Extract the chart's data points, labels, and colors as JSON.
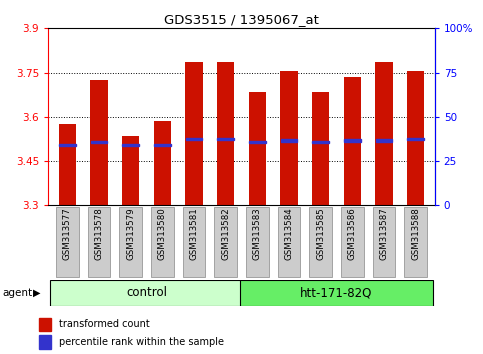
{
  "title": "GDS3515 / 1395067_at",
  "samples": [
    "GSM313577",
    "GSM313578",
    "GSM313579",
    "GSM313580",
    "GSM313581",
    "GSM313582",
    "GSM313583",
    "GSM313584",
    "GSM313585",
    "GSM313586",
    "GSM313587",
    "GSM313588"
  ],
  "transformed_counts": [
    3.575,
    3.725,
    3.535,
    3.585,
    3.785,
    3.785,
    3.685,
    3.755,
    3.685,
    3.735,
    3.785,
    3.755
  ],
  "percentile_values": [
    3.505,
    3.515,
    3.505,
    3.505,
    3.525,
    3.525,
    3.515,
    3.52,
    3.515,
    3.52,
    3.52,
    3.525
  ],
  "ylim_left": [
    3.3,
    3.9
  ],
  "ylim_right": [
    0,
    100
  ],
  "yticks_left": [
    3.3,
    3.45,
    3.6,
    3.75,
    3.9
  ],
  "yticks_right": [
    0,
    25,
    50,
    75,
    100
  ],
  "ytick_labels_right": [
    "0",
    "25",
    "50",
    "75",
    "100%"
  ],
  "bar_color": "#cc1100",
  "percentile_color": "#3333cc",
  "ctrl_n": 6,
  "treat_n": 6,
  "control_label": "control",
  "treatment_label": "htt-171-82Q",
  "agent_label": "agent",
  "control_bg": "#ccffcc",
  "treatment_bg": "#66ee66",
  "xlabel_bg": "#cccccc",
  "legend_red_label": "transformed count",
  "legend_blue_label": "percentile rank within the sample",
  "bar_width": 0.55,
  "base_value": 3.3,
  "grid_vals": [
    3.45,
    3.6,
    3.75
  ]
}
